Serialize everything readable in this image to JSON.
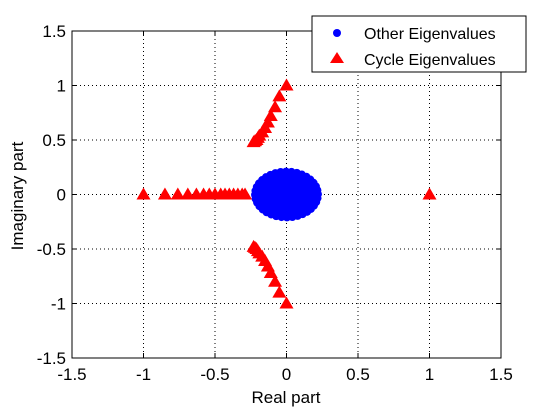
{
  "chart_data": {
    "type": "scatter",
    "xlabel": "Real part",
    "ylabel": "Imaginary part",
    "xlim": [
      -1.5,
      1.5
    ],
    "ylim": [
      -1.5,
      1.5
    ],
    "xticks": [
      -1.5,
      -1,
      -0.5,
      0,
      0.5,
      1,
      1.5
    ],
    "yticks": [
      -1.5,
      -1,
      -0.5,
      0,
      0.5,
      1,
      1.5
    ],
    "xtick_labels": [
      "-1.5",
      "-1",
      "-0.5",
      "0",
      "0.5",
      "1",
      "1.5"
    ],
    "ytick_labels": [
      "-1.5",
      "-1",
      "-0.5",
      "0",
      "0.5",
      "1",
      "1.5"
    ],
    "grid": true,
    "legend_position": "top-right",
    "series": [
      {
        "name": "Other Eigenvalues",
        "marker": "circle",
        "color": "#0000ff",
        "cluster": {
          "center": [
            0,
            0
          ],
          "radius_x": 0.22,
          "radius_y": 0.21
        }
      },
      {
        "name": "Cycle Eigenvalues",
        "marker": "triangle",
        "color": "#ff0000",
        "points": [
          [
            1.0,
            0.0
          ],
          [
            -1.0,
            0.0
          ],
          [
            -0.85,
            0.0
          ],
          [
            -0.76,
            0.0
          ],
          [
            -0.69,
            0.0
          ],
          [
            -0.63,
            0.0
          ],
          [
            -0.58,
            0.0
          ],
          [
            -0.54,
            0.0
          ],
          [
            -0.5,
            0.0
          ],
          [
            -0.46,
            0.0
          ],
          [
            -0.43,
            0.0
          ],
          [
            -0.4,
            0.0
          ],
          [
            -0.37,
            0.0
          ],
          [
            -0.34,
            0.0
          ],
          [
            -0.31,
            0.0
          ],
          [
            -0.29,
            0.0
          ],
          [
            0.0,
            1.0
          ],
          [
            -0.05,
            0.9
          ],
          [
            -0.08,
            0.8
          ],
          [
            -0.11,
            0.72
          ],
          [
            -0.13,
            0.66
          ],
          [
            -0.15,
            0.61
          ],
          [
            -0.17,
            0.57
          ],
          [
            -0.19,
            0.54
          ],
          [
            -0.2,
            0.52
          ],
          [
            -0.21,
            0.5
          ],
          [
            -0.22,
            0.49
          ],
          [
            -0.23,
            0.48
          ],
          [
            0.0,
            -1.0
          ],
          [
            -0.05,
            -0.9
          ],
          [
            -0.08,
            -0.8
          ],
          [
            -0.11,
            -0.72
          ],
          [
            -0.13,
            -0.66
          ],
          [
            -0.15,
            -0.61
          ],
          [
            -0.17,
            -0.57
          ],
          [
            -0.19,
            -0.54
          ],
          [
            -0.2,
            -0.52
          ],
          [
            -0.21,
            -0.5
          ],
          [
            -0.22,
            -0.49
          ],
          [
            -0.23,
            -0.48
          ]
        ]
      }
    ],
    "legend": [
      "Other Eigenvalues",
      "Cycle Eigenvalues"
    ]
  }
}
